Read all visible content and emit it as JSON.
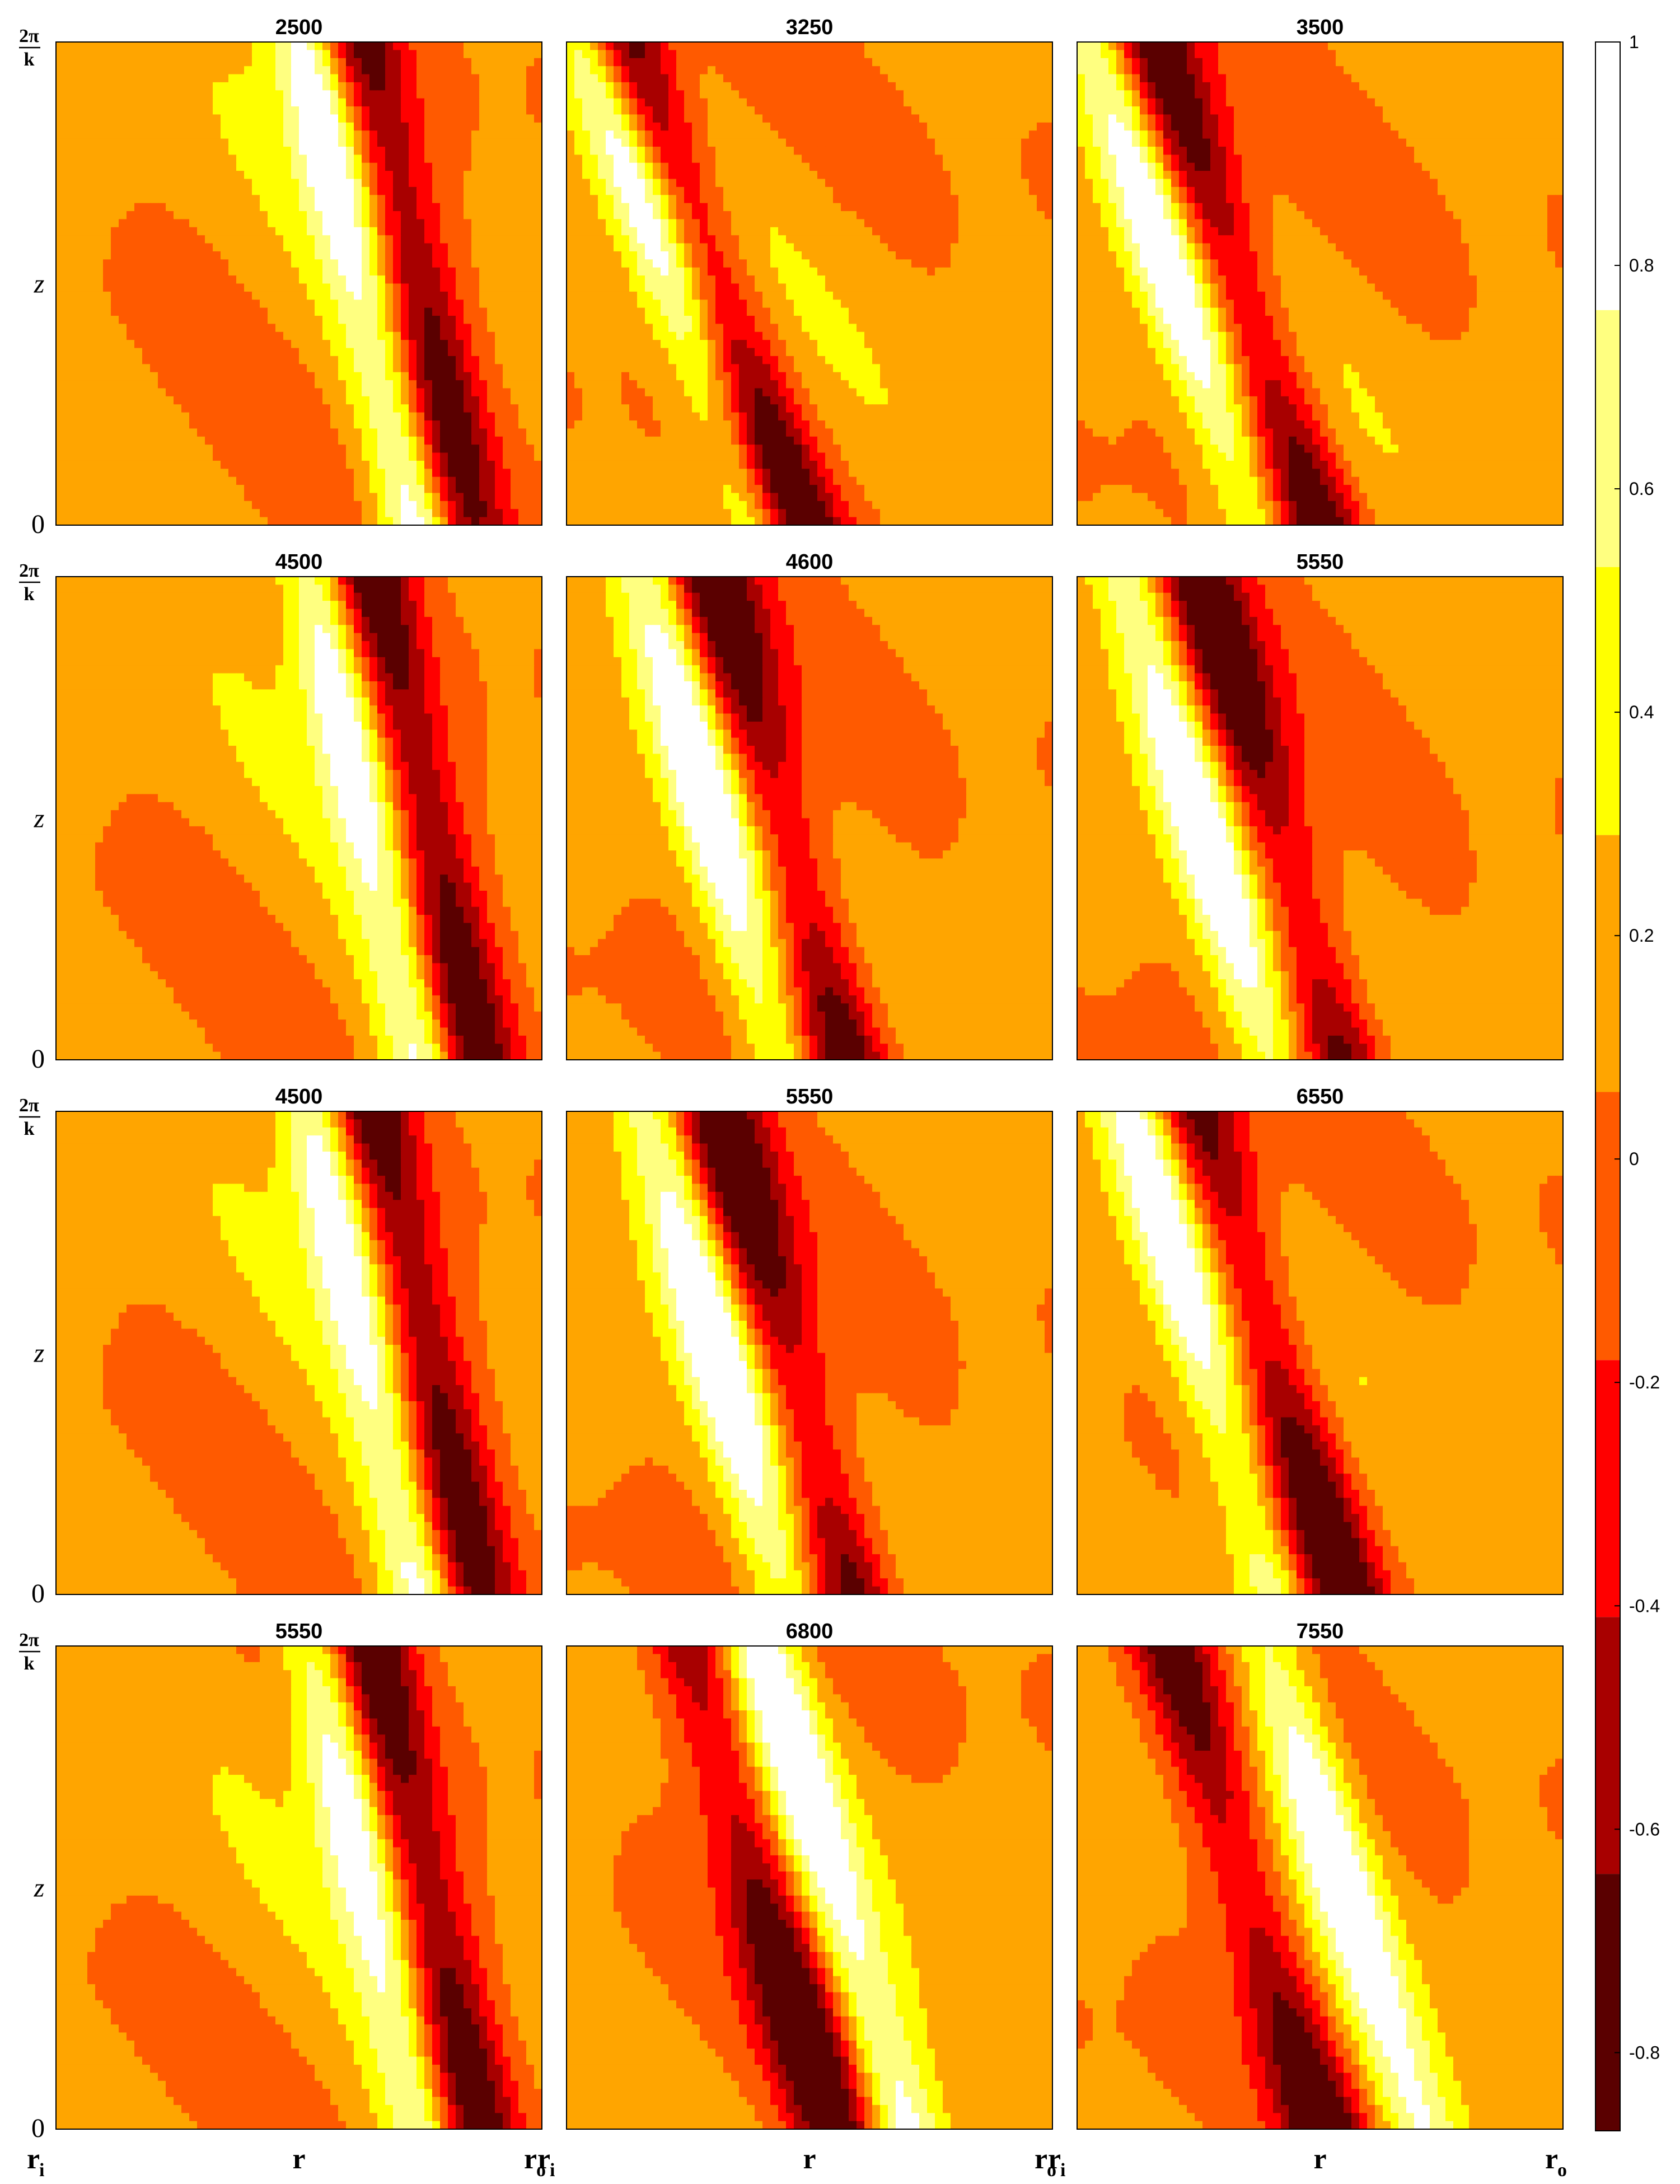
{
  "chart_data": {
    "type": "heatmap",
    "grid": "off",
    "panel_titles": [
      "2500",
      "3250",
      "3500",
      "4500",
      "4600",
      "5550",
      "4500",
      "5550",
      "6550",
      "5550",
      "6800",
      "7550"
    ],
    "xlabel": "r",
    "x_tick_labels": {
      "left": "r",
      "left_sub": "i",
      "middle": "r",
      "right": "r",
      "right_sub": "o"
    },
    "ylabel": "z",
    "y_tick_labels": {
      "bottom": "0",
      "top_num": "2π",
      "top_den": "k"
    },
    "colorbar": {
      "position": "right",
      "range": [
        -0.87,
        1
      ],
      "tick_values": [
        1,
        0.8,
        0.6,
        0.4,
        0.2,
        0,
        -0.2,
        -0.4,
        -0.6,
        -0.8
      ],
      "tick_labels": [
        "1",
        "0.8",
        "0.6",
        "0.4",
        "0.2",
        "0",
        "-0.2",
        "-0.4",
        "-0.6",
        "-0.8"
      ],
      "levels": [
        {
          "from": -0.87,
          "to": -0.64,
          "color": "#5a0000"
        },
        {
          "from": -0.64,
          "to": -0.41,
          "color": "#a80000"
        },
        {
          "from": -0.41,
          "to": -0.18,
          "color": "#ff0000"
        },
        {
          "from": -0.18,
          "to": 0.06,
          "color": "#ff5a00"
        },
        {
          "from": 0.06,
          "to": 0.29,
          "color": "#ffa500"
        },
        {
          "from": 0.29,
          "to": 0.53,
          "color": "#ffff00"
        },
        {
          "from": 0.53,
          "to": 0.76,
          "color": "#ffff80"
        },
        {
          "from": 0.76,
          "to": 1.0,
          "color": "#ffffff"
        }
      ]
    }
  }
}
